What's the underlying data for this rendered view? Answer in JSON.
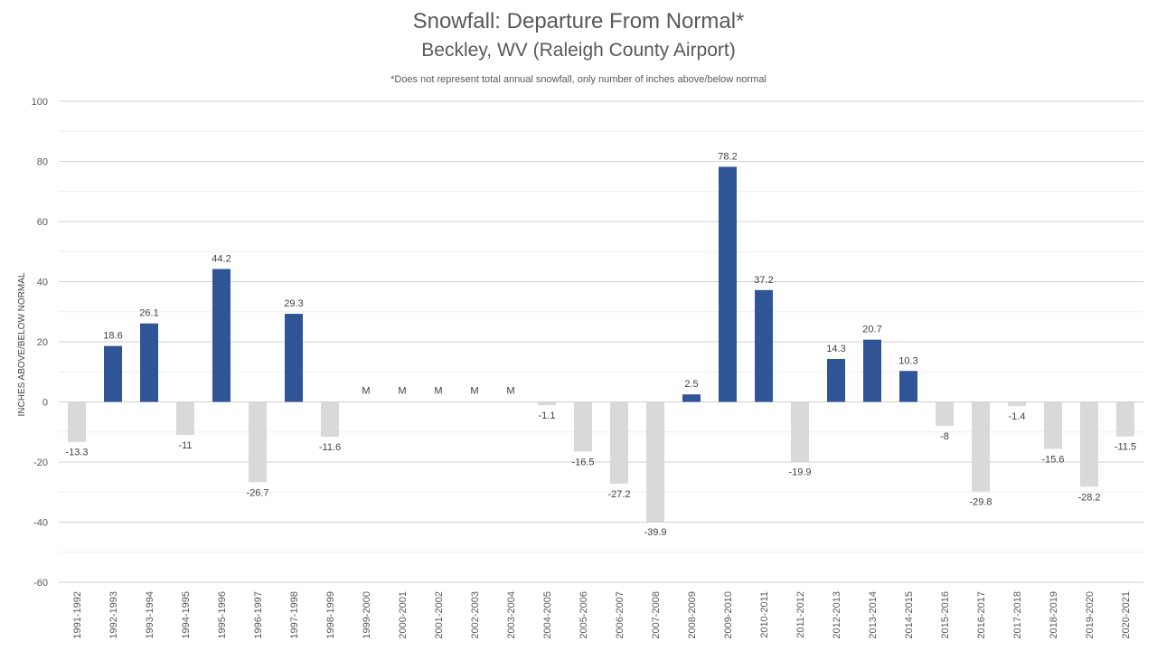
{
  "chart_data": {
    "type": "bar",
    "title": "Snowfall: Departure From Normal*",
    "subtitle": "Beckley, WV (Raleigh County Airport)",
    "note": "*Does not represent  total annual snowfall, only number of inches above/below normal",
    "ylabel": "INCHES ABOVE/BELOW NORMAL",
    "xlabel": "",
    "ylim": [
      -60,
      100
    ],
    "yticks": [
      -60,
      -40,
      -20,
      0,
      20,
      40,
      60,
      80,
      100
    ],
    "grid": true,
    "colors": {
      "positive": "#2F5597",
      "negative": "#D9D9D9",
      "grid": "#D9D9D9"
    },
    "categories": [
      "1991-1992",
      "1992-1993",
      "1993-1994",
      "1994-1995",
      "1995-1996",
      "1996-1997",
      "1997-1998",
      "1998-1999",
      "1999-2000",
      "2000-2001",
      "2001-2002",
      "2002-2003",
      "2003-2004",
      "2004-2005",
      "2005-2006",
      "2006-2007",
      "2007-2008",
      "2008-2009",
      "2009-2010",
      "2010-2011",
      "2011-2012",
      "2012-2013",
      "2013-2014",
      "2014-2015",
      "2015-2016",
      "2016-2017",
      "2017-2018",
      "2018-2019",
      "2019-2020",
      "2020-2021"
    ],
    "values": [
      -13.3,
      18.6,
      26.1,
      -11,
      44.2,
      -26.7,
      29.3,
      -11.6,
      null,
      null,
      null,
      null,
      null,
      -1.1,
      -16.5,
      -27.2,
      -39.9,
      2.5,
      78.2,
      37.2,
      -19.9,
      14.3,
      20.7,
      10.3,
      -8,
      -29.8,
      -1.4,
      -15.6,
      -28.2,
      -11.5
    ],
    "labels": [
      "-13.3",
      "18.6",
      "26.1",
      "-11",
      "44.2",
      "-26.7",
      "29.3",
      "-11.6",
      "M",
      "M",
      "M",
      "M",
      "M",
      "-1.1",
      "-16.5",
      "-27.2",
      "-39.9",
      "2.5",
      "78.2",
      "37.2",
      "-19.9",
      "14.3",
      "20.7",
      "10.3",
      "-8",
      "-29.8",
      "-1.4",
      "-15.6",
      "-28.2",
      "-11.5"
    ]
  }
}
